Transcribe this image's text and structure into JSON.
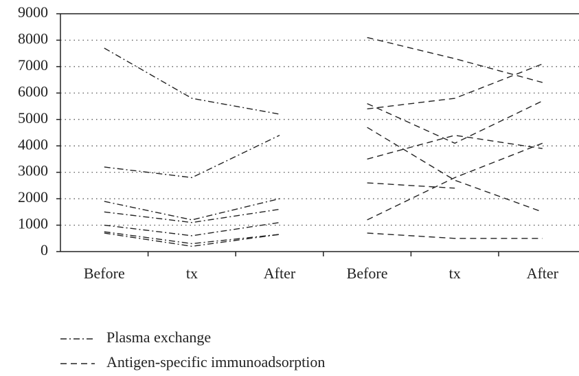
{
  "chart_data": {
    "type": "line",
    "categories": [
      "Before",
      "tx",
      "After",
      "Before",
      "tx",
      "After"
    ],
    "ylim": [
      0,
      9000
    ],
    "yticks": [
      0,
      1000,
      2000,
      3000,
      4000,
      5000,
      6000,
      7000,
      8000,
      9000
    ],
    "grid": true,
    "series": [
      {
        "name": "Plasma exchange",
        "color": "#222222",
        "line_style": "dash-dot",
        "values": [
          [
            7700,
            5800,
            5200,
            null,
            null,
            null
          ],
          [
            3200,
            2800,
            4400,
            null,
            null,
            null
          ],
          [
            1900,
            1200,
            2000,
            null,
            null,
            null
          ],
          [
            1500,
            1100,
            1600,
            null,
            null,
            null
          ],
          [
            1000,
            600,
            1100,
            null,
            null,
            null
          ],
          [
            750,
            300,
            650,
            null,
            null,
            null
          ],
          [
            700,
            200,
            650,
            null,
            null,
            null
          ]
        ]
      },
      {
        "name": "Antigen-specific immunoadsorption",
        "color": "#222222",
        "line_style": "dashed",
        "values": [
          [
            null,
            null,
            null,
            8100,
            7300,
            6400
          ],
          [
            null,
            null,
            null,
            5400,
            5800,
            7100
          ],
          [
            null,
            null,
            null,
            5600,
            4100,
            5700
          ],
          [
            null,
            null,
            null,
            3500,
            4400,
            3900
          ],
          [
            null,
            null,
            null,
            4700,
            2700,
            1500
          ],
          [
            null,
            null,
            null,
            2600,
            2400,
            null
          ],
          [
            null,
            null,
            null,
            1200,
            2800,
            4100
          ],
          [
            null,
            null,
            null,
            700,
            500,
            500
          ]
        ]
      }
    ]
  }
}
